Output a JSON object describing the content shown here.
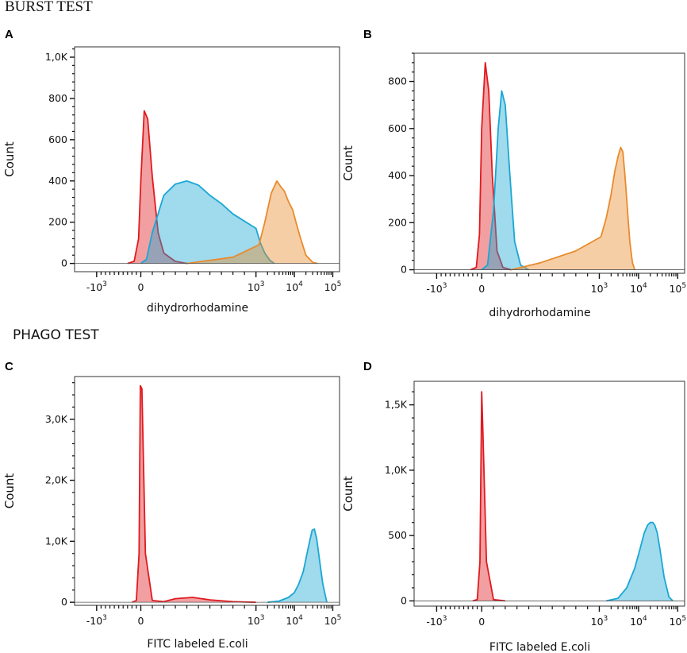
{
  "sections": {
    "burst": "BURST TEST",
    "phago": "PHAGO TEST"
  },
  "colors": {
    "red": "#e01a1f",
    "cyan": "#1aa7d4",
    "orange": "#e98a2c"
  },
  "chart_data": [
    {
      "panel": "A",
      "type": "area",
      "title": "",
      "xlabel": "dihydrorhodamine",
      "ylabel": "Count",
      "x_scale": "biexponential (log above 10^3)",
      "xlim": [
        -1500,
        150000
      ],
      "ylim": [
        -40,
        1050
      ],
      "x_ticks": [
        {
          "sign": "-",
          "exp": "3",
          "value": -1000
        },
        {
          "plain": "0",
          "value": 0
        },
        {
          "exp": "3",
          "value": 1000
        },
        {
          "exp": "4",
          "value": 10000
        },
        {
          "exp": "5",
          "value": 100000
        }
      ],
      "y_ticks": [
        {
          "label": "0",
          "value": 0
        },
        {
          "label": "200",
          "value": 200
        },
        {
          "label": "400",
          "value": 400
        },
        {
          "label": "600",
          "value": 600
        },
        {
          "label": "800",
          "value": 800
        },
        {
          "label": "1,0K",
          "value": 1000
        }
      ],
      "series": [
        {
          "name": "red",
          "color": "red",
          "x": [
            -300,
            -150,
            -50,
            0,
            30,
            60,
            100,
            150,
            200,
            300,
            400
          ],
          "y": [
            0,
            10,
            120,
            400,
            740,
            700,
            420,
            150,
            50,
            10,
            0
          ]
        },
        {
          "name": "cyan",
          "color": "cyan",
          "x": [
            0,
            50,
            100,
            200,
            300,
            400,
            500,
            600,
            700,
            800,
            1000,
            1300,
            1700,
            2300,
            3000
          ],
          "y": [
            0,
            20,
            150,
            330,
            385,
            400,
            380,
            330,
            290,
            240,
            170,
            100,
            50,
            15,
            0
          ]
        },
        {
          "name": "orange",
          "color": "orange",
          "x": [
            400,
            800,
            1200,
            1700,
            2500,
            3500,
            4500,
            5500,
            7000,
            9000,
            11000,
            14000,
            20000,
            30000,
            40000
          ],
          "y": [
            0,
            30,
            90,
            200,
            340,
            400,
            370,
            350,
            300,
            260,
            200,
            130,
            40,
            5,
            0
          ]
        }
      ]
    },
    {
      "panel": "B",
      "type": "area",
      "title": "",
      "xlabel": "dihydrorhodamine",
      "ylabel": "Count",
      "x_scale": "biexponential (log above 10^3)",
      "xlim": [
        -1500,
        150000
      ],
      "ylim": [
        -15,
        920
      ],
      "x_ticks": [
        {
          "sign": "-",
          "exp": "3",
          "value": -1000
        },
        {
          "plain": "0",
          "value": 0
        },
        {
          "exp": "3",
          "value": 1000
        },
        {
          "exp": "4",
          "value": 10000
        },
        {
          "exp": "5",
          "value": 100000
        }
      ],
      "y_ticks": [
        {
          "label": "0",
          "value": 0
        },
        {
          "label": "200",
          "value": 200
        },
        {
          "label": "400",
          "value": 400
        },
        {
          "label": "600",
          "value": 600
        },
        {
          "label": "800",
          "value": 800
        }
      ],
      "series": [
        {
          "name": "red",
          "color": "red",
          "x": [
            -250,
            -120,
            -50,
            0,
            30,
            60,
            90,
            130,
            180,
            250
          ],
          "y": [
            0,
            10,
            150,
            600,
            880,
            760,
            400,
            80,
            10,
            0
          ]
        },
        {
          "name": "cyan",
          "color": "cyan",
          "x": [
            0,
            50,
            100,
            140,
            170,
            200,
            240,
            280,
            330,
            400
          ],
          "y": [
            0,
            20,
            250,
            600,
            760,
            700,
            400,
            120,
            20,
            0
          ]
        },
        {
          "name": "orange",
          "color": "orange",
          "x": [
            250,
            500,
            800,
            1100,
            1500,
            2000,
            2500,
            3000,
            3500,
            4000,
            4500,
            5000,
            5500,
            6000,
            7000,
            8000
          ],
          "y": [
            0,
            30,
            80,
            140,
            220,
            320,
            420,
            480,
            520,
            500,
            400,
            300,
            200,
            120,
            30,
            0
          ]
        }
      ]
    },
    {
      "panel": "C",
      "type": "area",
      "title": "",
      "xlabel": "FITC labeled E.coli",
      "ylabel": "Count",
      "x_scale": "biexponential (log above 10^3)",
      "xlim": [
        -1500,
        150000
      ],
      "ylim": [
        -50,
        3700
      ],
      "x_ticks": [
        {
          "sign": "-",
          "exp": "3",
          "value": -1000
        },
        {
          "plain": "0",
          "value": 0
        },
        {
          "exp": "3",
          "value": 1000
        },
        {
          "exp": "4",
          "value": 10000
        },
        {
          "exp": "5",
          "value": 100000
        }
      ],
      "y_ticks": [
        {
          "label": "0",
          "value": 0
        },
        {
          "label": "1,0K",
          "value": 1000
        },
        {
          "label": "2,0K",
          "value": 2000
        },
        {
          "label": "3,0K",
          "value": 3000
        }
      ],
      "series": [
        {
          "name": "red",
          "color": "red",
          "x": [
            -200,
            -100,
            -40,
            -10,
            10,
            40,
            100,
            200,
            300,
            450,
            600,
            800,
            1000
          ],
          "y": [
            0,
            30,
            800,
            3550,
            3500,
            800,
            30,
            10,
            60,
            80,
            40,
            10,
            0
          ]
        },
        {
          "name": "cyan",
          "color": "cyan",
          "x": [
            2000,
            4000,
            7000,
            10000,
            13000,
            17000,
            21000,
            25000,
            29000,
            33000,
            38000,
            45000,
            55000,
            70000
          ],
          "y": [
            0,
            20,
            80,
            160,
            300,
            500,
            780,
            1000,
            1180,
            1200,
            1050,
            700,
            300,
            0
          ]
        }
      ]
    },
    {
      "panel": "D",
      "type": "area",
      "title": "",
      "xlabel": "FITC labeled E.coli",
      "ylabel": "Count",
      "x_scale": "biexponential (log above 10^3)",
      "xlim": [
        -1500,
        150000
      ],
      "ylim": [
        -40,
        1680
      ],
      "x_ticks": [
        {
          "sign": "-",
          "exp": "3",
          "value": -1000
        },
        {
          "plain": "0",
          "value": 0
        },
        {
          "exp": "3",
          "value": 1000
        },
        {
          "exp": "4",
          "value": 10000
        },
        {
          "exp": "5",
          "value": 100000
        }
      ],
      "y_ticks": [
        {
          "label": "0",
          "value": 0
        },
        {
          "label": "500",
          "value": 500
        },
        {
          "label": "1,0K",
          "value": 1000
        },
        {
          "label": "1,5K",
          "value": 1500
        }
      ],
      "series": [
        {
          "name": "red",
          "color": "red",
          "x": [
            -200,
            -100,
            -40,
            -10,
            0,
            10,
            40,
            100,
            200
          ],
          "y": [
            0,
            10,
            300,
            1300,
            1600,
            1300,
            300,
            10,
            0
          ]
        },
        {
          "name": "cyan",
          "color": "cyan",
          "x": [
            1500,
            3000,
            5000,
            8000,
            11000,
            14000,
            17000,
            20000,
            23000,
            26000,
            30000,
            35000,
            45000,
            60000,
            75000
          ],
          "y": [
            0,
            20,
            100,
            250,
            400,
            520,
            580,
            600,
            600,
            580,
            520,
            400,
            180,
            30,
            0
          ]
        }
      ]
    }
  ]
}
